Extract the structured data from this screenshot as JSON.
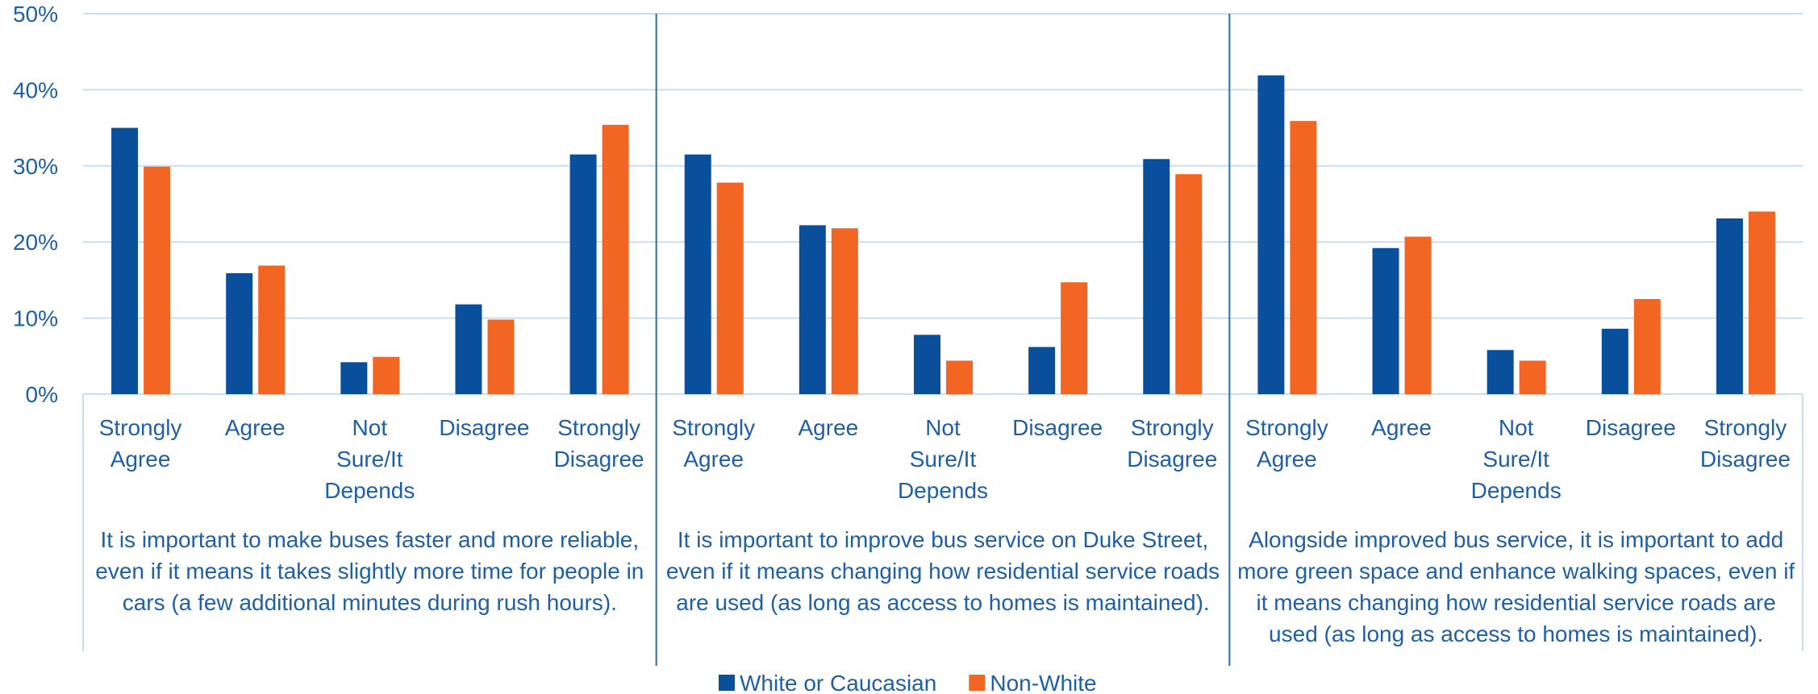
{
  "chart_data": {
    "type": "bar",
    "categories": [
      "Strongly Agree",
      "Agree",
      "Not Sure/It Depends",
      "Disagree",
      "Strongly Disagree",
      "Strongly Agree",
      "Agree",
      "Not Sure/It Depends",
      "Disagree",
      "Strongly Disagree",
      "Strongly Agree",
      "Agree",
      "Not Sure/It Depends",
      "Disagree",
      "Strongly Disagree"
    ],
    "groups": [
      "It is important to make buses faster and more reliable, even if it means it takes slightly more time for people in cars (a few additional minutes during rush hours).",
      "It is important to improve bus service on Duke Street, even if it means changing how residential service roads are used (as long as access to homes is maintained).",
      "Alongside improved bus service, it is important to add more green space and enhance walking spaces, even if it means changing how residential service roads are used (as long as access to homes is maintained)."
    ],
    "series": [
      {
        "name": "White or Caucasian",
        "color": "#0a4f9c",
        "values": [
          35,
          15.9,
          4.2,
          11.8,
          31.5,
          31.5,
          22.2,
          7.8,
          6.2,
          30.9,
          41.9,
          19.2,
          5.8,
          8.6,
          23.1
        ]
      },
      {
        "name": "Non-White",
        "color": "#f26522",
        "values": [
          29.9,
          16.9,
          4.9,
          9.8,
          35.4,
          27.8,
          21.8,
          4.4,
          14.7,
          28.9,
          35.9,
          20.7,
          4.4,
          12.5,
          24
        ]
      }
    ],
    "ylim": [
      0,
      50
    ],
    "yticks": [
      {
        "value": 0,
        "label": "0%"
      },
      {
        "value": 10,
        "label": "10%"
      },
      {
        "value": 20,
        "label": "20%"
      },
      {
        "value": 30,
        "label": "30%"
      },
      {
        "value": 40,
        "label": "40%"
      },
      {
        "value": 50,
        "label": "50%"
      }
    ],
    "grid": true
  }
}
